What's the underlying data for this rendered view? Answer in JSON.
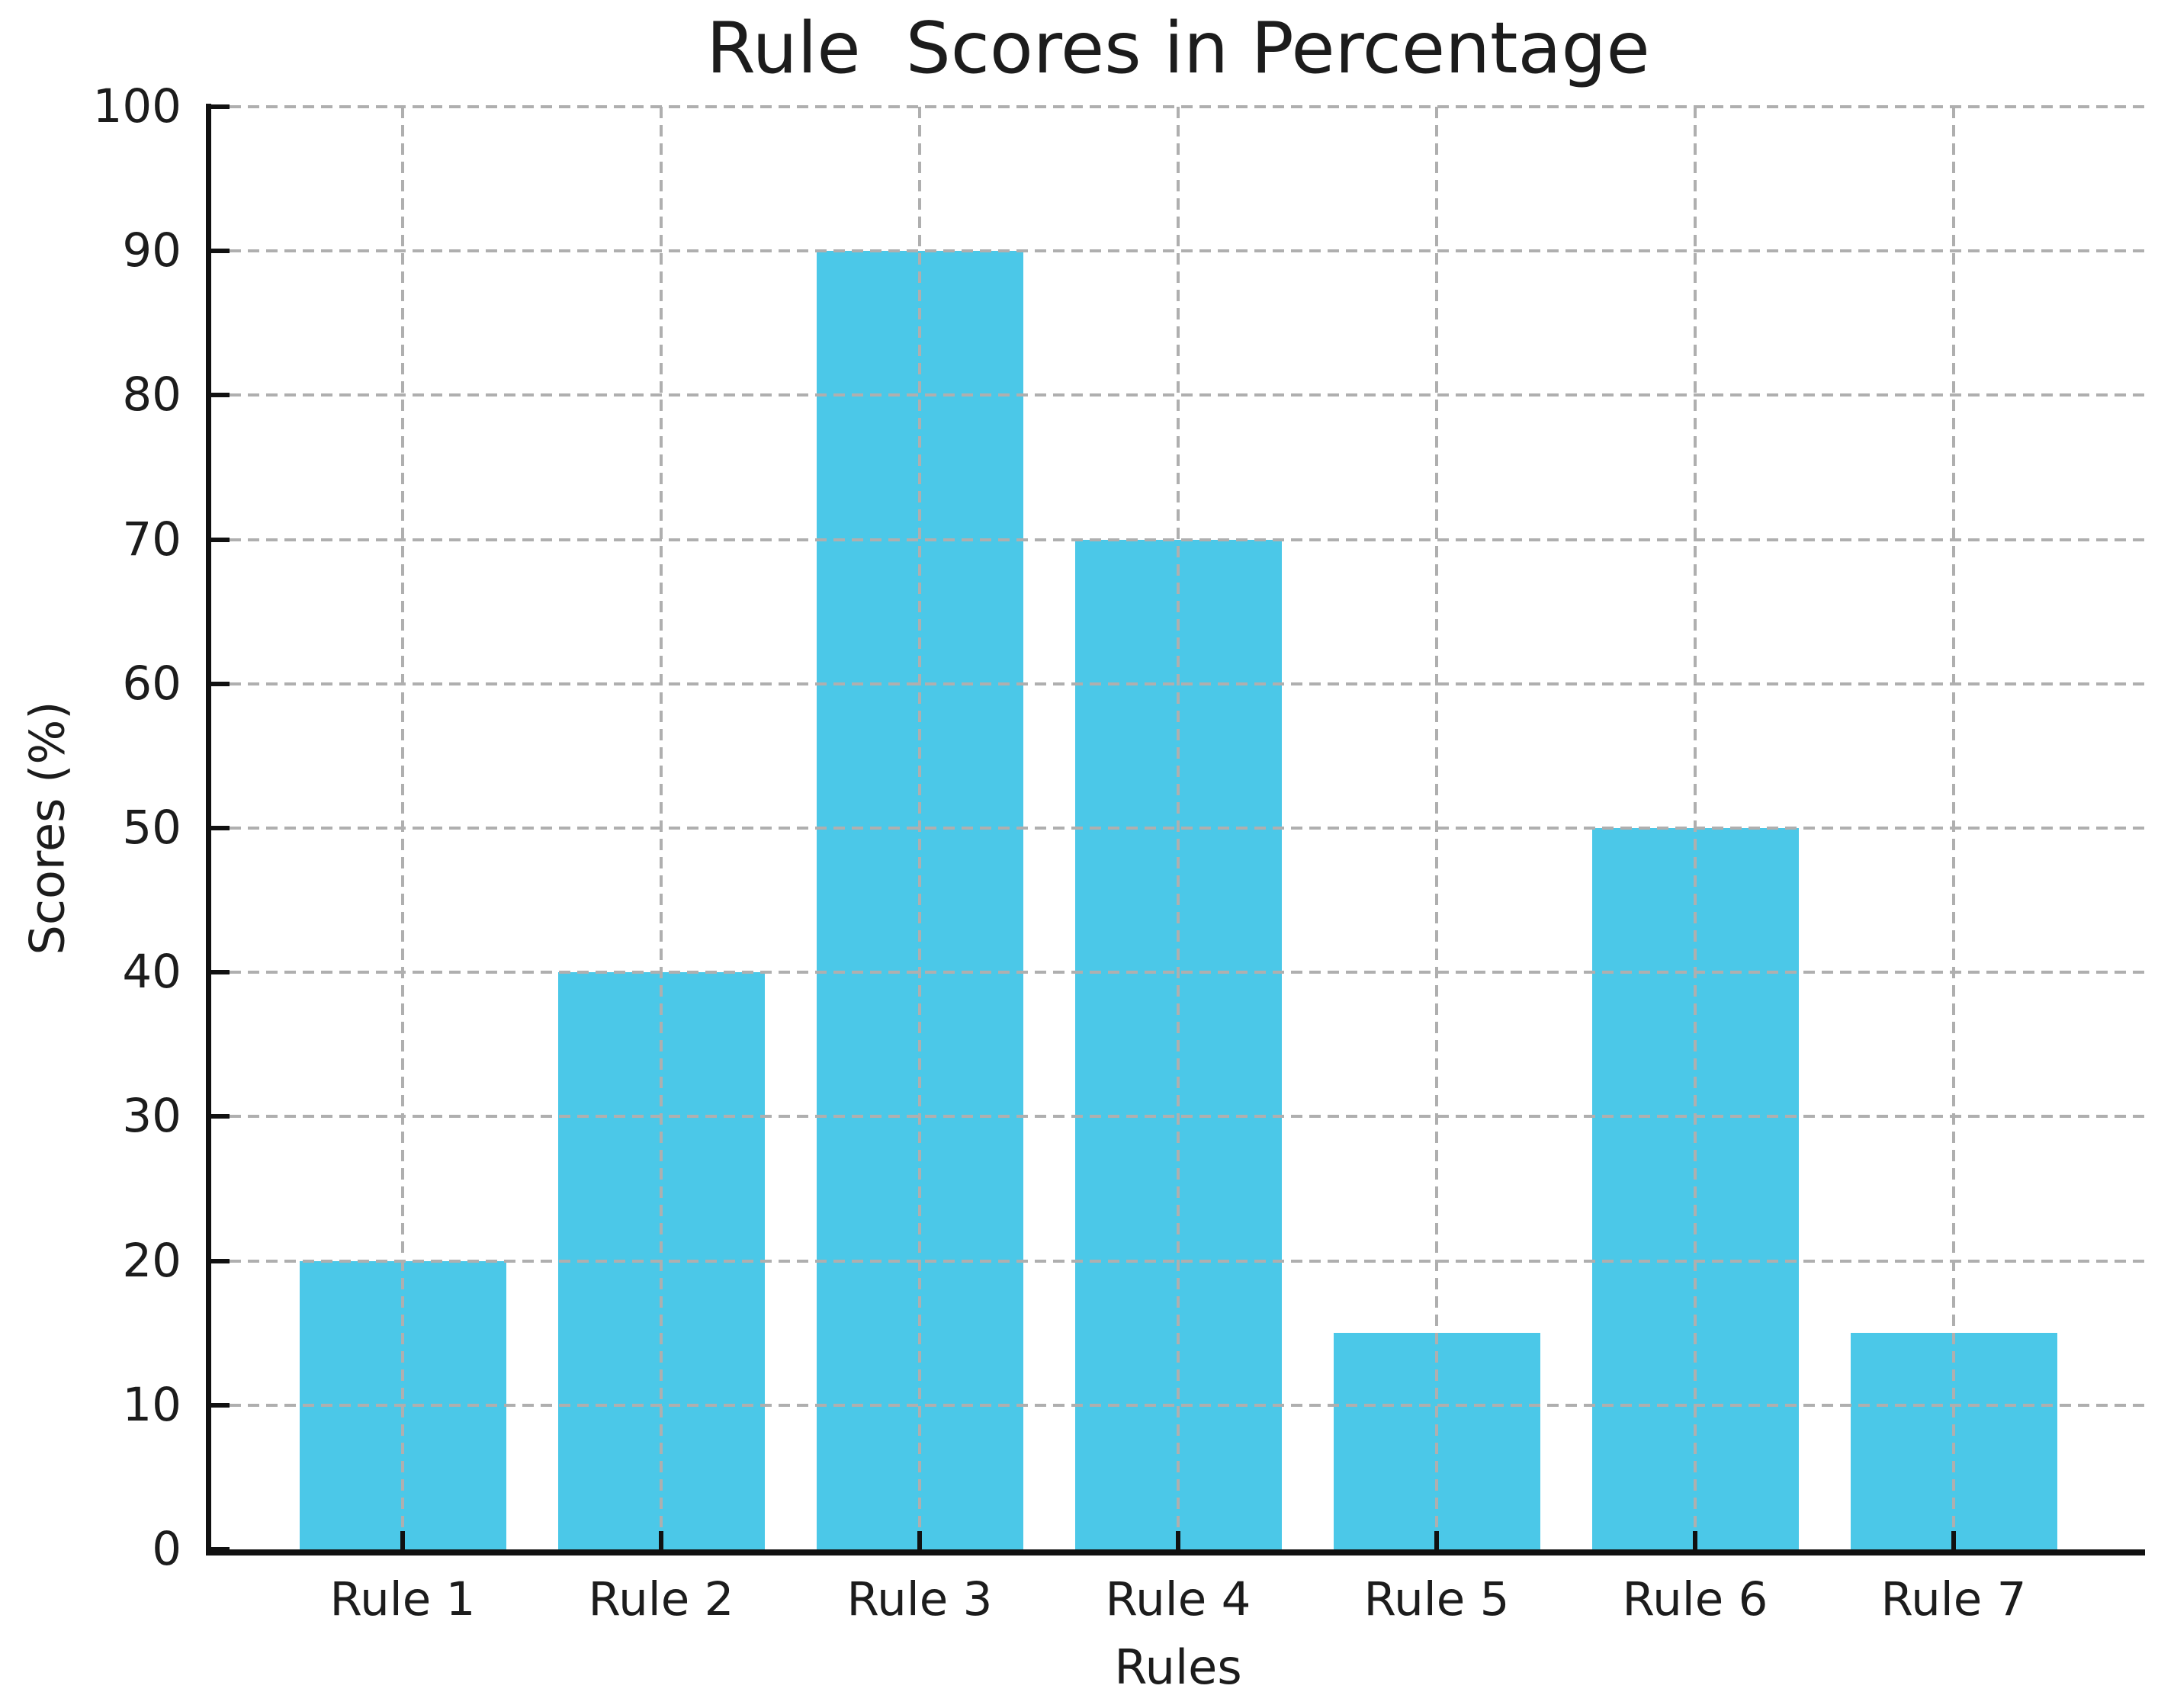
{
  "chart_data": {
    "type": "bar",
    "title": "Rule  Scores in Percentage",
    "xlabel": "Rules",
    "ylabel": "Scores (%)",
    "categories": [
      "Rule 1",
      "Rule 2",
      "Rule 3",
      "Rule 4",
      "Rule 5",
      "Rule 6",
      "Rule 7"
    ],
    "values": [
      20,
      40,
      90,
      70,
      15,
      50,
      15
    ],
    "ylim": [
      0,
      100
    ],
    "yticks": [
      0,
      10,
      20,
      30,
      40,
      50,
      60,
      70,
      80,
      90,
      100
    ],
    "bar_color": "#4bc8e8",
    "grid_color": "#afafaf",
    "axis_color": "#111111",
    "text_color": "#1c1c1c",
    "grid": "dashed gridlines on both axes, drawn above bars",
    "legend": "none",
    "spines": "left and bottom only, ticks point inward"
  }
}
